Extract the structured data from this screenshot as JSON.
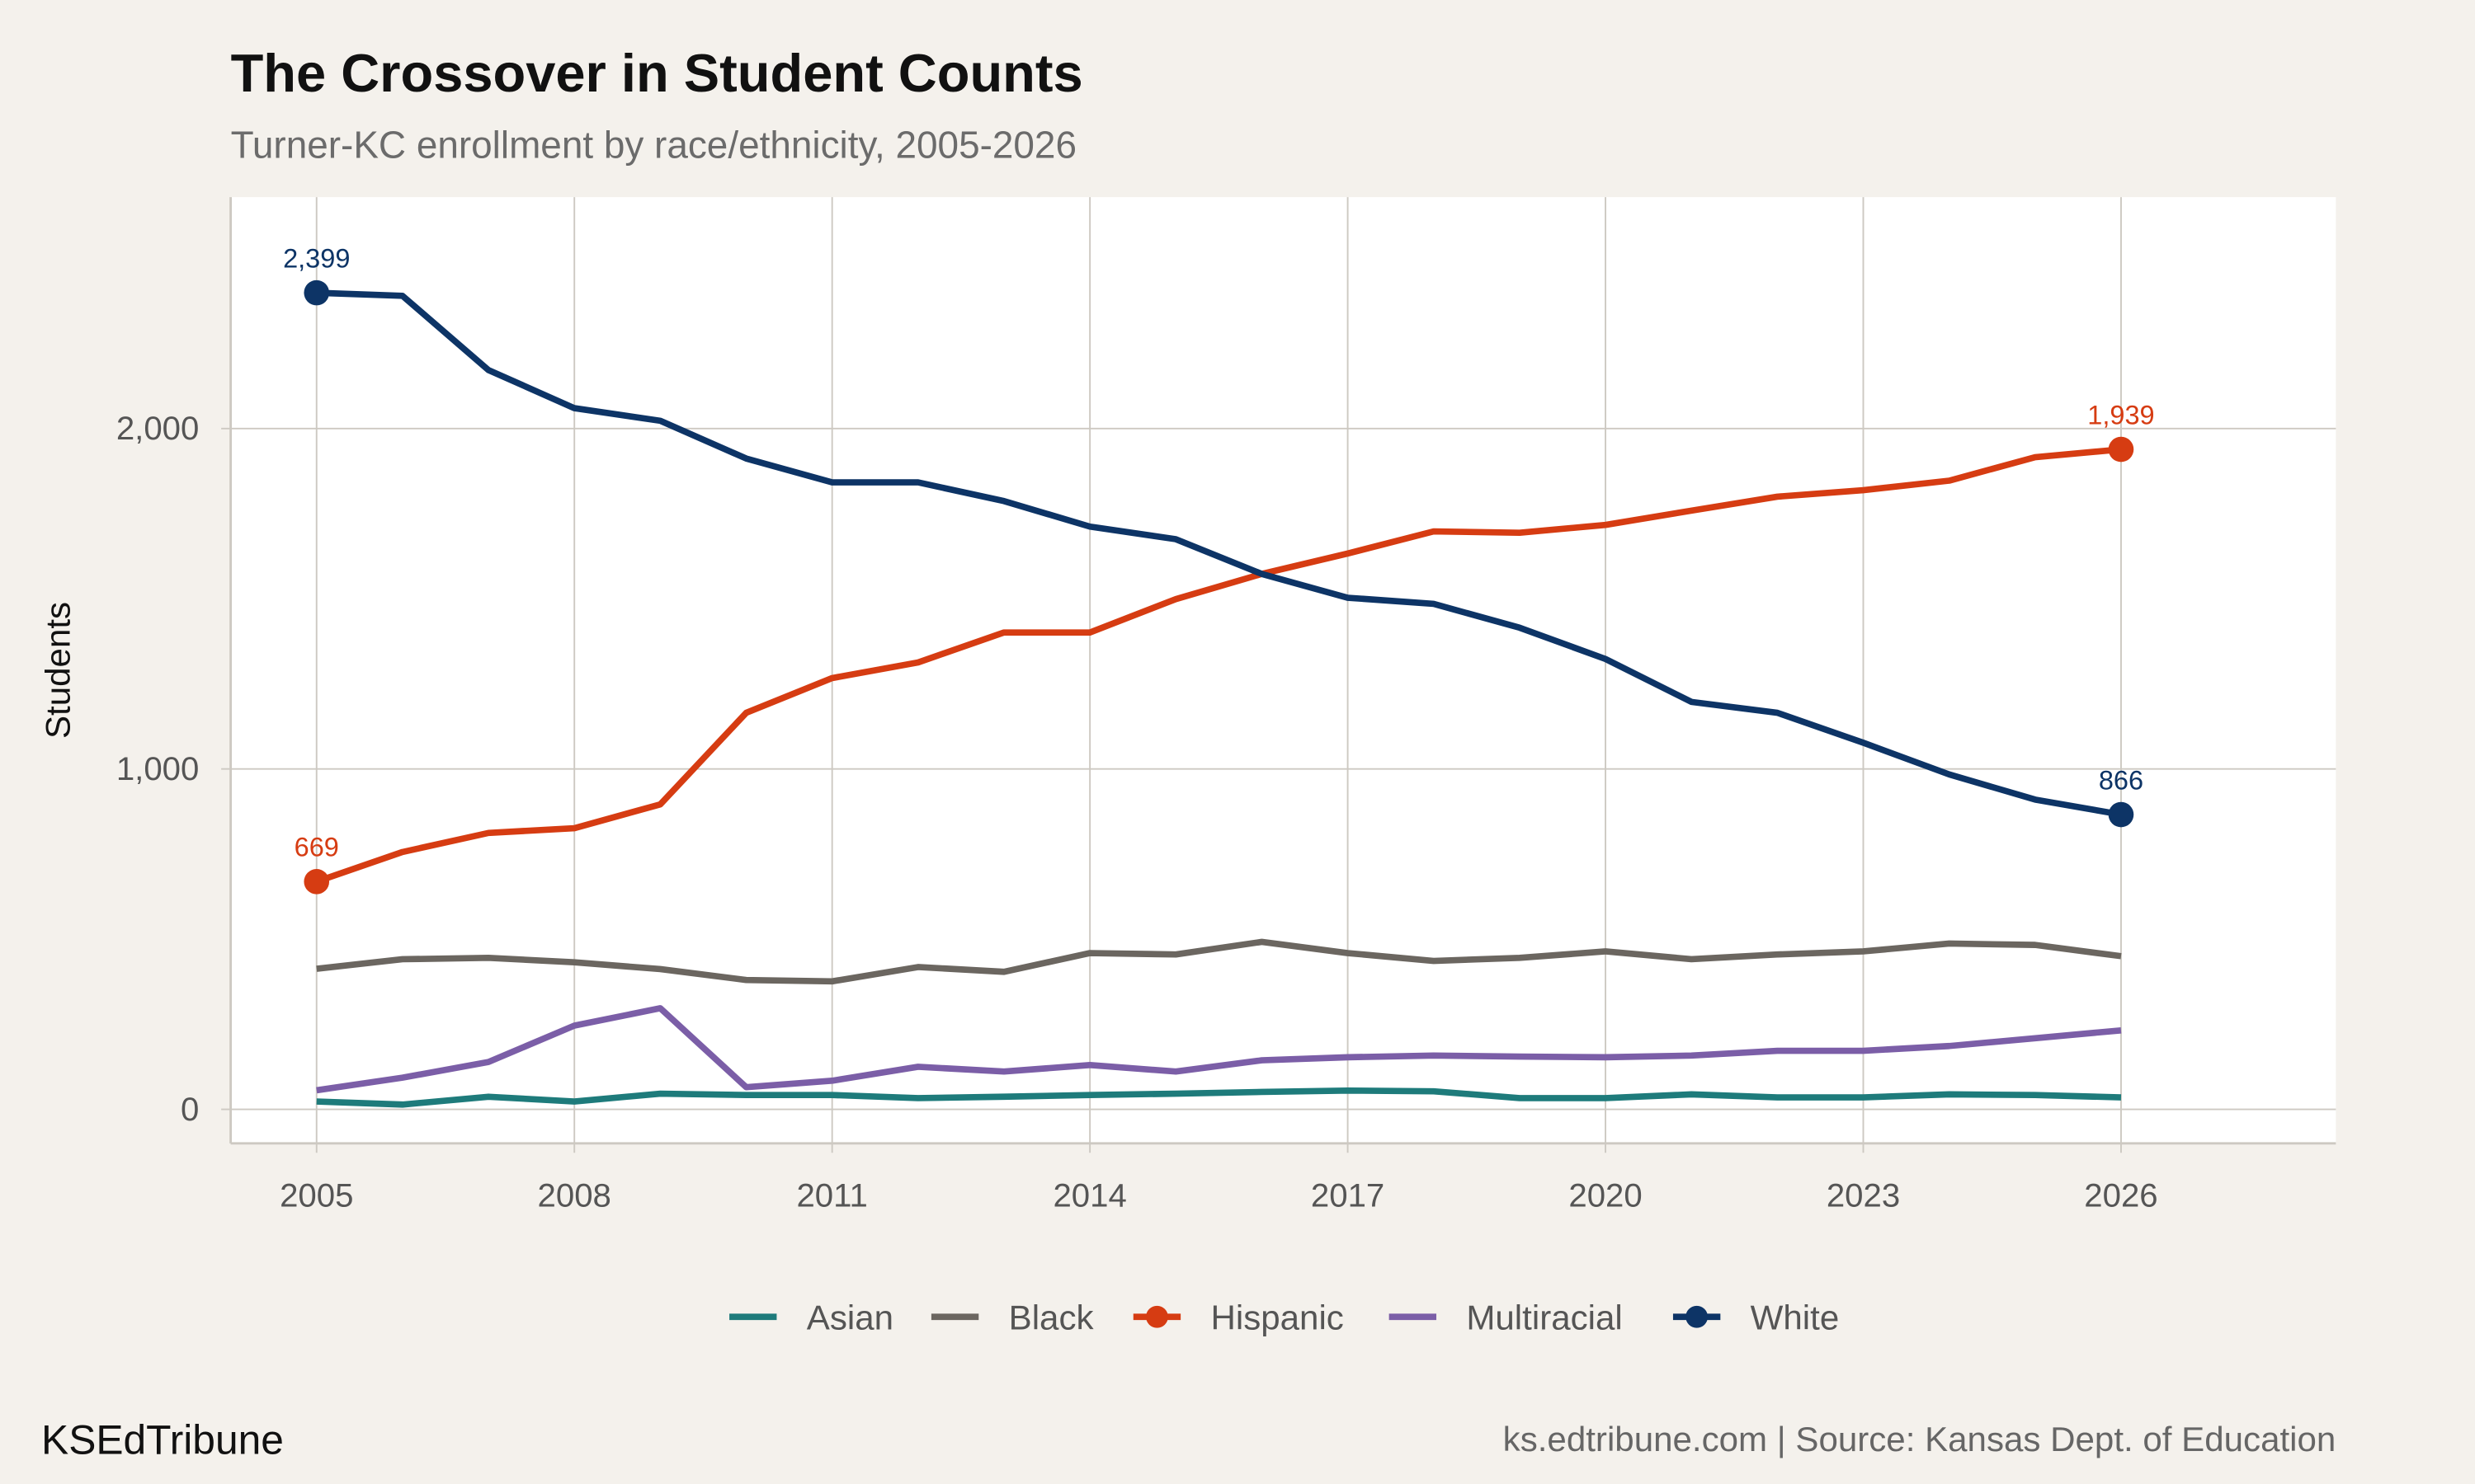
{
  "chart_data": {
    "type": "line",
    "title": "The Crossover in Student Counts",
    "subtitle": "Turner-KC enrollment by race/ethnicity, 2005-2026",
    "xlabel": "",
    "ylabel": "Students",
    "x": [
      2005,
      2006,
      2007,
      2008,
      2009,
      2010,
      2011,
      2012,
      2013,
      2014,
      2015,
      2016,
      2017,
      2018,
      2019,
      2020,
      2021,
      2022,
      2023,
      2024,
      2025,
      2026
    ],
    "xlim": [
      2004,
      2028.5
    ],
    "ylim": [
      -100,
      2680
    ],
    "xticks": [
      2005,
      2008,
      2011,
      2014,
      2017,
      2020,
      2023,
      2026
    ],
    "xtick_labels": [
      "2005",
      "2008",
      "2011",
      "2014",
      "2017",
      "2020",
      "2023",
      "2026"
    ],
    "yticks": [
      0,
      1000,
      2000
    ],
    "ytick_labels": [
      "0",
      "1,000",
      "2,000"
    ],
    "grid": true,
    "legend_position": "bottom",
    "series": [
      {
        "name": "Asian",
        "color": "#1e7b7b",
        "points": false,
        "values": [
          23,
          14,
          37,
          23,
          46,
          42,
          42,
          33,
          37,
          42,
          46,
          51,
          55,
          53,
          33,
          33,
          44,
          35,
          35,
          44,
          42,
          35
        ]
      },
      {
        "name": "Black",
        "color": "#6b6660",
        "points": false,
        "values": [
          413,
          441,
          445,
          432,
          412,
          380,
          376,
          418,
          404,
          459,
          455,
          492,
          459,
          436,
          445,
          464,
          441,
          455,
          464,
          487,
          483,
          450
        ]
      },
      {
        "name": "Hispanic",
        "color": "#d63c12",
        "points": true,
        "values": [
          669,
          756,
          812,
          826,
          896,
          1165,
          1267,
          1313,
          1401,
          1401,
          1499,
          1573,
          1633,
          1698,
          1694,
          1717,
          1759,
          1800,
          1819,
          1847,
          1916,
          1939
        ]
      },
      {
        "name": "Multiracial",
        "color": "#7b5ea7",
        "points": false,
        "values": [
          56,
          93,
          139,
          246,
          297,
          65,
          84,
          125,
          111,
          130,
          111,
          144,
          153,
          158,
          155,
          153,
          158,
          172,
          172,
          186,
          209,
          232
        ]
      },
      {
        "name": "White",
        "color": "#0d3466",
        "points": true,
        "values": [
          2399,
          2390,
          2172,
          2060,
          2023,
          1912,
          1842,
          1842,
          1787,
          1712,
          1675,
          1573,
          1503,
          1485,
          1415,
          1323,
          1197,
          1165,
          1077,
          984,
          910,
          866
        ]
      }
    ],
    "annotations": [
      {
        "series": "White",
        "x": 2005,
        "y": 2399,
        "label": "2,399"
      },
      {
        "series": "White",
        "x": 2026,
        "y": 866,
        "label": "866"
      },
      {
        "series": "Hispanic",
        "x": 2005,
        "y": 669,
        "label": "669"
      },
      {
        "series": "Hispanic",
        "x": 2026,
        "y": 1939,
        "label": "1,939"
      }
    ]
  },
  "footer": {
    "brand": "KSEdTribune",
    "source": "ks.edtribune.com | Source: Kansas Dept. of Education"
  },
  "colors": {
    "background": "#f4f1ec",
    "panel": "#ffffff",
    "grid": "#cdc9c2"
  }
}
